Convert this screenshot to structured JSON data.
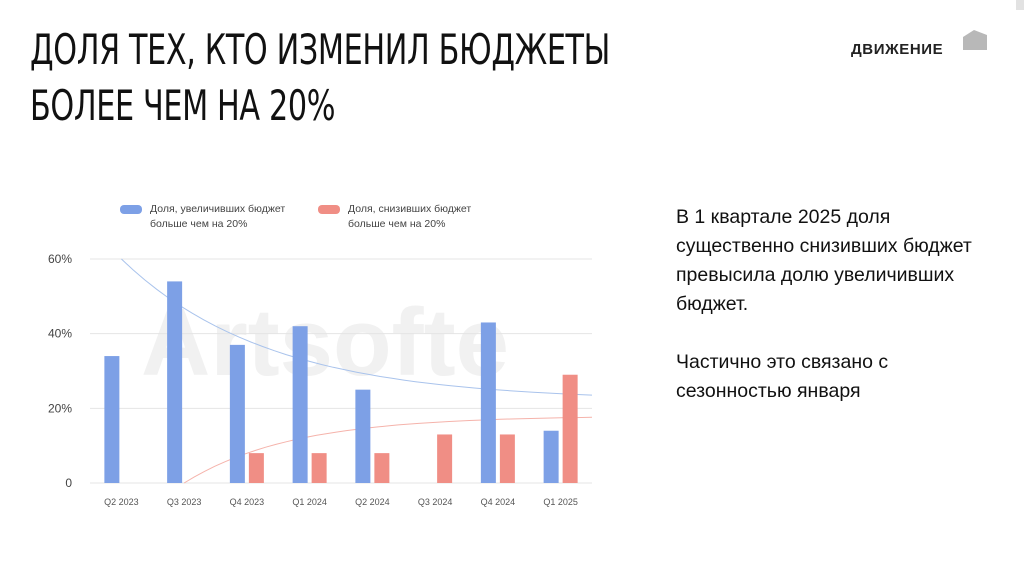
{
  "slide": {
    "title_lines": [
      "ДОЛЯ ТЕХ, КТО ИЗМЕНИЛ БЮДЖЕТЫ",
      "БОЛЕЕ ЧЕМ НА 20%"
    ],
    "brand": "ДВИЖЕНИЕ",
    "paragraphs": [
      "В 1 квартале 2025 доля существенно снизивших бюджет превысила долю увеличивших бюджет.",
      "Частично это связано с сезонностью января"
    ]
  },
  "chart_data": {
    "type": "bar",
    "categories": [
      "Q2 2023",
      "Q3 2023",
      "Q4 2023",
      "Q1 2024",
      "Q2 2024",
      "Q3 2024",
      "Q4 2024",
      "Q1 2025"
    ],
    "series": [
      {
        "name": "Доля, увеличивших бюджет больше чем на 20%",
        "color": "#7da0e6",
        "values": [
          34,
          54,
          37,
          42,
          25,
          null,
          43,
          14
        ]
      },
      {
        "name": "Доля, снизивших бюджет больше чем на 20%",
        "color": "#f08e85",
        "values": [
          null,
          null,
          8,
          8,
          8,
          13,
          13,
          29
        ]
      }
    ],
    "legend_lines": [
      [
        "Доля, увеличивших бюджет",
        "больше чем на 20%"
      ],
      [
        "Доля, снизивших бюджет",
        "больше чем на 20%"
      ]
    ],
    "y_ticks": [
      "0",
      "20%",
      "40%",
      "60%"
    ],
    "y_tick_values": [
      0,
      20,
      40,
      60
    ],
    "ylim": [
      0,
      60
    ],
    "grid": true,
    "legend_position": "top",
    "trend_colors": {
      "up": "#a9c3ec",
      "down": "#f5b3ab"
    },
    "watermark": "Artsofte"
  }
}
